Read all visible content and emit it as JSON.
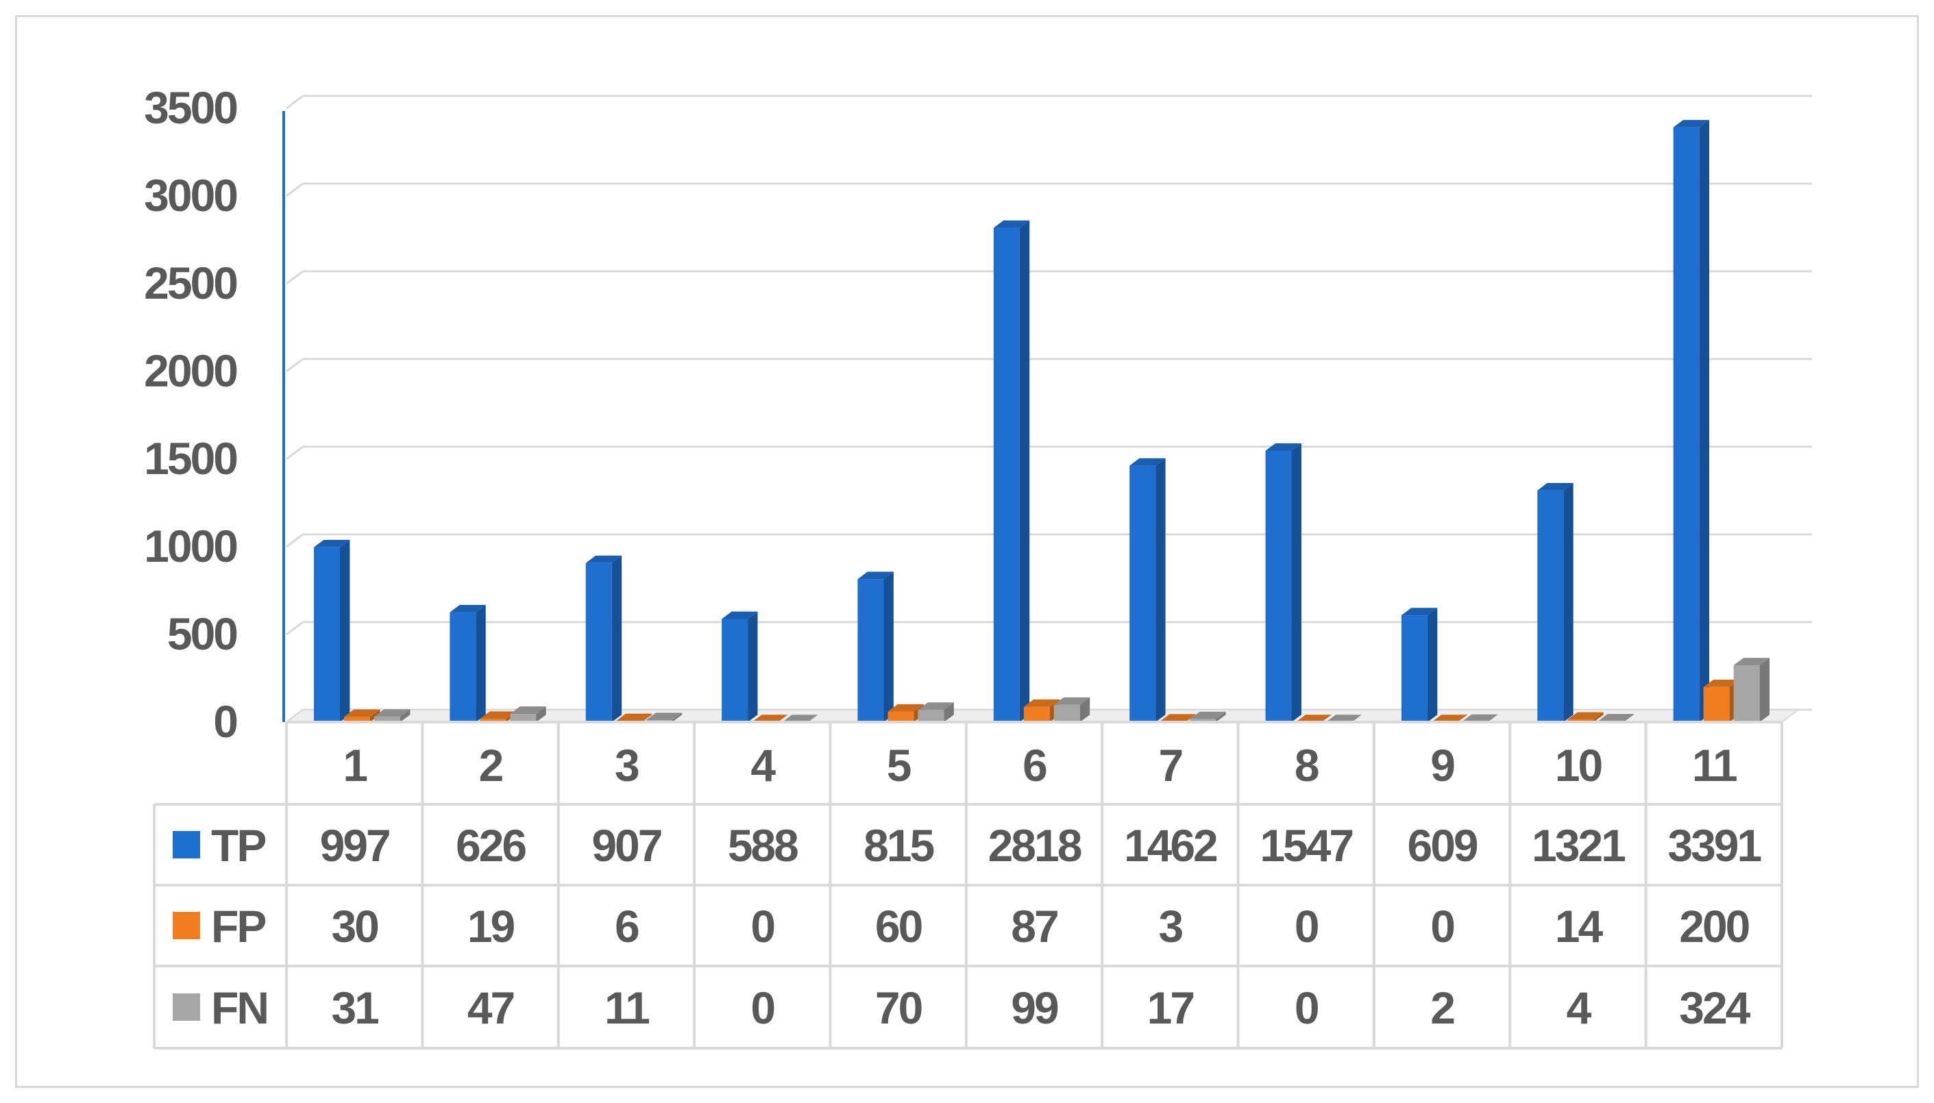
{
  "chart_data": {
    "type": "bar",
    "categories": [
      "1",
      "2",
      "3",
      "4",
      "5",
      "6",
      "7",
      "8",
      "9",
      "10",
      "11"
    ],
    "series": [
      {
        "name": "TP",
        "color": "#1f6fd1",
        "values": [
          997,
          626,
          907,
          588,
          815,
          2818,
          1462,
          1547,
          609,
          1321,
          3391
        ]
      },
      {
        "name": "FP",
        "color": "#f07d20",
        "values": [
          30,
          19,
          6,
          0,
          60,
          87,
          3,
          0,
          0,
          14,
          200
        ]
      },
      {
        "name": "FN",
        "color": "#a6a6a6",
        "values": [
          31,
          47,
          11,
          0,
          70,
          99,
          17,
          0,
          2,
          4,
          324
        ]
      }
    ],
    "title": "",
    "xlabel": "",
    "ylabel": "",
    "ylim": [
      0,
      3500
    ],
    "yticks": [
      "0",
      "500",
      "1000",
      "1500",
      "2000",
      "2500",
      "3000",
      "3500"
    ],
    "grid": true,
    "legend": "data table",
    "style": "3d-column"
  }
}
